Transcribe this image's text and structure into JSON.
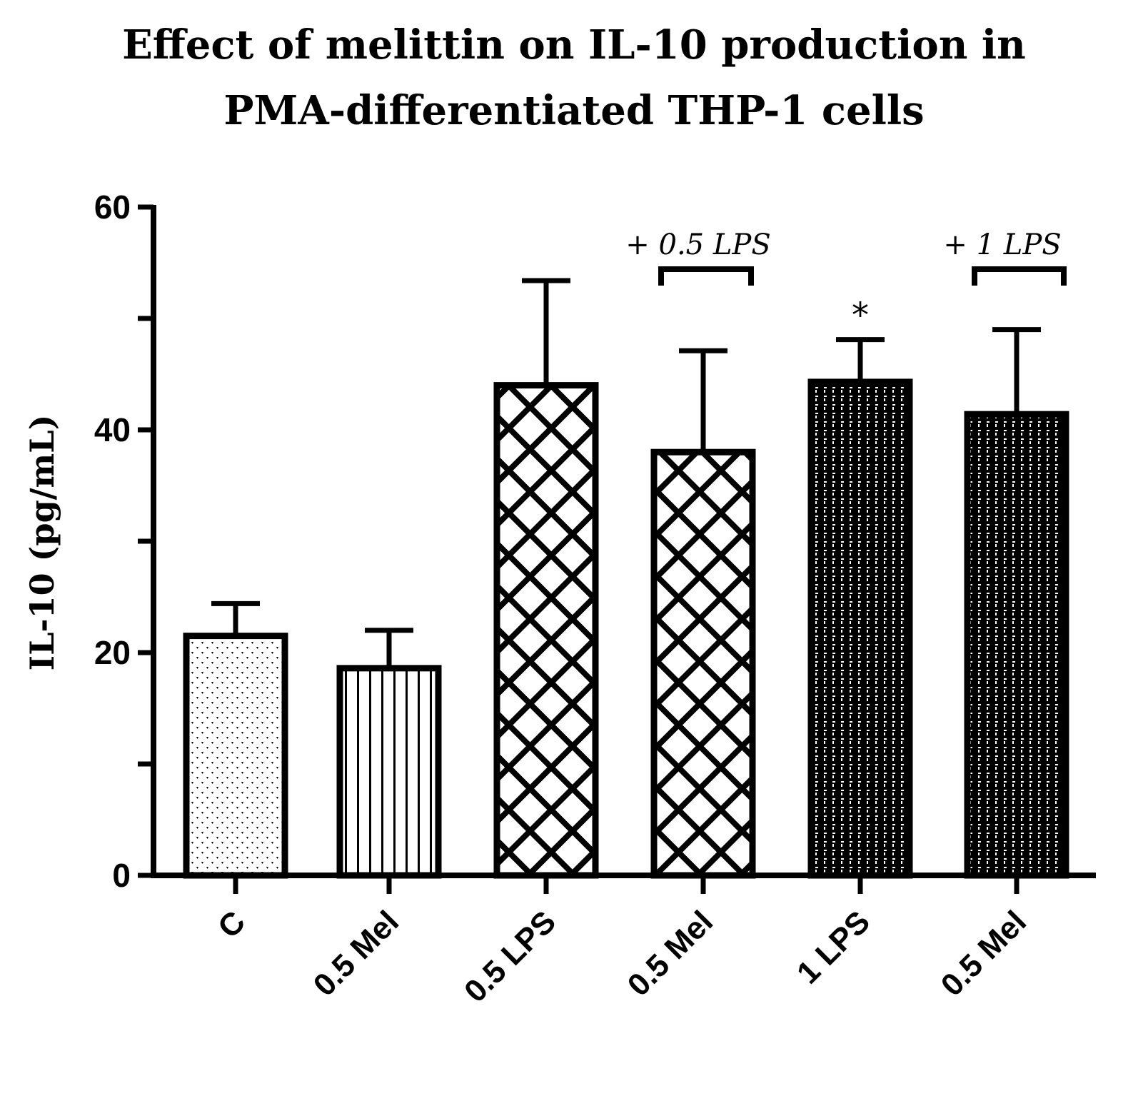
{
  "chart_data": {
    "type": "bar",
    "title_line1": "Effect of melittin on IL-10 production in",
    "title_line2": "PMA-differentiated THP-1 cells",
    "ylabel": "IL-10 (pg/mL)",
    "xlabel": "",
    "ylim": [
      0,
      60
    ],
    "yticks": [
      "0",
      "20",
      "40",
      "60"
    ],
    "categories": [
      "C",
      "0.5 Mel",
      "0.5 LPS",
      "0.5 Mel",
      "1 LPS",
      "0.5 Mel"
    ],
    "values": [
      21.5,
      18.6,
      44.0,
      38.0,
      44.3,
      41.4
    ],
    "error_upper": [
      24.4,
      22.0,
      53.4,
      47.1,
      48.1,
      49.0
    ],
    "patterns": [
      "dots",
      "vertical-lines",
      "crosshatch",
      "crosshatch",
      "dense-grid",
      "dense-grid"
    ],
    "annotations": {
      "bracket1": "+ 0.5 LPS",
      "bracket2": "+ 1 LPS",
      "significance": "*"
    },
    "grid": false,
    "legend": "none"
  }
}
